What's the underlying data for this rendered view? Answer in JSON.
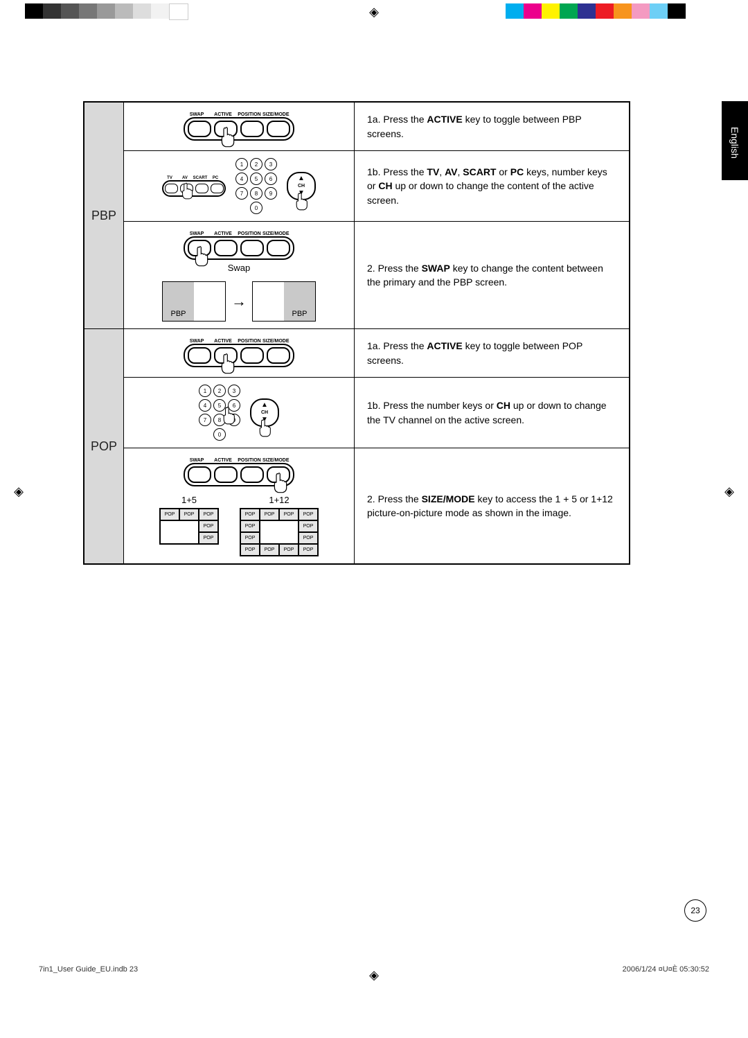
{
  "colorBarsLeft": [
    "#000000",
    "#333333",
    "#555555",
    "#777777",
    "#999999",
    "#bbbbbb",
    "#dddddd",
    "#f2f2f2",
    "#ffffff"
  ],
  "colorBarsRight": [
    "#00aeef",
    "#ec008c",
    "#fff200",
    "#00a651",
    "#2e3192",
    "#ed1c24",
    "#f7941d",
    "#f49ac1",
    "#6dcff6",
    "#000000"
  ],
  "langTab": "English",
  "pageNumber": "23",
  "footerLeft": "7in1_User Guide_EU.indb   23",
  "footerRight": "2006/1/24   ¤U¤È 05:30:52",
  "remoteButtons": [
    "SWAP",
    "ACTIVE",
    "POSITION",
    "SIZE/MODE"
  ],
  "sourceButtons": [
    "TV",
    "AV",
    "SCART",
    "PC"
  ],
  "sections": [
    {
      "header": "PBP",
      "rows": [
        {
          "illus": {
            "type": "remote4",
            "pressIndex": 1
          },
          "text": [
            {
              "t": "1a. Press the "
            },
            {
              "b": "ACTIVE"
            },
            {
              "t": " key to toggle between PBP screens."
            }
          ]
        },
        {
          "illus": {
            "type": "src-num-ch"
          },
          "text": [
            {
              "t": "1b. Press the "
            },
            {
              "b": "TV"
            },
            {
              "t": ", "
            },
            {
              "b": "AV"
            },
            {
              "t": ", "
            },
            {
              "b": "SCART"
            },
            {
              "t": " or "
            },
            {
              "b": "PC"
            },
            {
              "t": " keys, number keys or "
            },
            {
              "b": "CH"
            },
            {
              "t": " up or down to change the content of the active screen."
            }
          ]
        },
        {
          "illus": {
            "type": "swap-diagram",
            "pressIndex": 0,
            "swapLabel": "Swap",
            "boxLabel": "PBP"
          },
          "text": [
            {
              "t": "2.   Press the "
            },
            {
              "b": "SWAP"
            },
            {
              "t": " key to change the content between the primary and the PBP screen."
            }
          ]
        }
      ]
    },
    {
      "header": "POP",
      "rows": [
        {
          "illus": {
            "type": "remote4",
            "pressIndex": 1
          },
          "text": [
            {
              "t": "1a. Press the "
            },
            {
              "b": "ACTIVE"
            },
            {
              "t": " key to toggle between POP screens."
            }
          ]
        },
        {
          "illus": {
            "type": "num-ch"
          },
          "text": [
            {
              "t": "1b. Press the number keys or "
            },
            {
              "b": "CH"
            },
            {
              "t": " up or down to change the TV channel on the active screen."
            }
          ]
        },
        {
          "illus": {
            "type": "pop-grids",
            "pressIndex": 3,
            "grids": [
              {
                "title": "1+5",
                "cols": 3,
                "rows": 3,
                "cells": [
                  {
                    "t": "POP"
                  },
                  {
                    "t": "POP"
                  },
                  {
                    "t": "POP"
                  },
                  {
                    "main": true,
                    "colspan": 2,
                    "rowspan": 2
                  },
                  {
                    "t": "POP"
                  },
                  {
                    "t": "POP"
                  }
                ]
              },
              {
                "title": "1+12",
                "cols": 4,
                "rows": 4,
                "cells": [
                  {
                    "t": "POP"
                  },
                  {
                    "t": "POP"
                  },
                  {
                    "t": "POP"
                  },
                  {
                    "t": "POP"
                  },
                  {
                    "t": "POP"
                  },
                  {
                    "main": true,
                    "colspan": 2,
                    "rowspan": 2
                  },
                  {
                    "t": "POP"
                  },
                  {
                    "t": "POP"
                  },
                  {
                    "t": "POP"
                  },
                  {
                    "t": "POP"
                  },
                  {
                    "t": "POP"
                  },
                  {
                    "t": "POP"
                  },
                  {
                    "t": "POP"
                  }
                ]
              }
            ]
          },
          "text": [
            {
              "t": "2.   Press the "
            },
            {
              "b": "SIZE/MODE"
            },
            {
              "t": " key to access the 1 + 5 or 1+12 picture-on-picture mode as shown in the image."
            }
          ]
        }
      ]
    }
  ]
}
